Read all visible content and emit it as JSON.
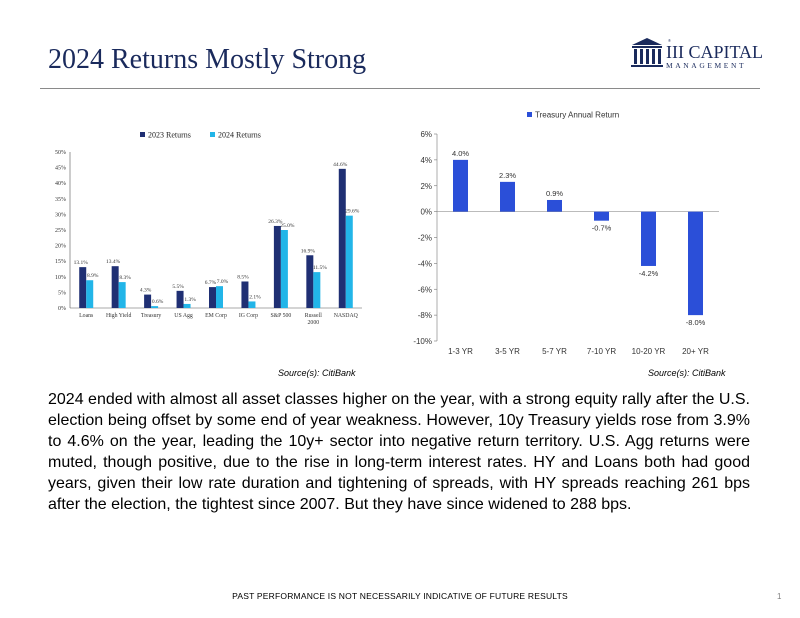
{
  "header": {
    "title": "2024 Returns Mostly Strong",
    "logo": {
      "main": "III CAPITAL",
      "sub": "MANAGEMENT",
      "reg": "®"
    }
  },
  "chart_left": {
    "chart_data": {
      "type": "bar",
      "categories": [
        "Loans",
        "High Yield",
        "Treasury",
        "US Agg",
        "EM Corp",
        "IG Corp",
        "S&P 500",
        "Russell 2000",
        "NASDAQ"
      ],
      "category_lines": [
        [
          "Loans"
        ],
        [
          "High Yield"
        ],
        [
          "Treasury"
        ],
        [
          "US Agg"
        ],
        [
          "EM Corp"
        ],
        [
          "IG Corp"
        ],
        [
          "S&P 500"
        ],
        [
          "Russell",
          "2000"
        ],
        [
          "NASDAQ"
        ]
      ],
      "series": [
        {
          "name": "2023 Returns",
          "values": [
            13.1,
            13.4,
            4.3,
            5.5,
            6.7,
            8.5,
            26.3,
            16.9,
            44.6
          ],
          "labels": [
            "13.1%",
            "13.4%",
            "4.3%",
            "5.5%",
            "6.7%",
            "8.5%",
            "26.3%",
            "16.9%",
            "44.6%"
          ],
          "color": "#1f2f73"
        },
        {
          "name": "2024 Returns",
          "values": [
            8.9,
            8.3,
            0.6,
            1.3,
            7.0,
            2.1,
            25.0,
            11.5,
            29.6
          ],
          "labels": [
            "8.9%",
            "8.3%",
            "0.6%",
            "1.3%",
            "7.0%",
            "2.1%",
            "25.0%",
            "11.5%",
            "29.6%"
          ],
          "color": "#22b5e8"
        }
      ],
      "yticks": [
        "0%",
        "5%",
        "10%",
        "15%",
        "20%",
        "25%",
        "30%",
        "35%",
        "40%",
        "45%",
        "50%"
      ],
      "ylim": [
        0,
        50
      ],
      "legend": "top"
    },
    "source": "Source(s): CitiBank"
  },
  "chart_right": {
    "chart_data": {
      "type": "bar",
      "categories": [
        "1-3 YR",
        "3-5 YR",
        "5-7 YR",
        "7-10 YR",
        "10-20 YR",
        "20+ YR"
      ],
      "series": [
        {
          "name": "Treasury Annual Return",
          "values": [
            4.0,
            2.3,
            0.9,
            -0.7,
            -4.2,
            -8.0
          ],
          "labels": [
            "4.0%",
            "2.3%",
            "0.9%",
            "-0.7%",
            "-4.2%",
            "-8.0%"
          ],
          "color": "#2b4fd8"
        }
      ],
      "yticks": [
        "6%",
        "4%",
        "2%",
        "0%",
        "-2%",
        "-4%",
        "-6%",
        "-8%",
        "-10%"
      ],
      "ylim": [
        -10,
        6
      ],
      "legend": "top"
    },
    "source": "Source(s): CitiBank"
  },
  "body_text": "2024 ended with almost all asset classes higher on the year, with a strong equity rally after the U.S. election being offset by some end of year weakness. However, 10y Treasury yields rose from 3.9% to 4.6% on the year, leading the 10y+ sector into negative return territory. U.S. Agg returns were muted, though positive, due to the rise in long-term interest rates. HY and Loans both had good years, given their low rate duration and tightening of spreads, with HY spreads reaching 261 bps after the election, the tightest since 2007. But they have since widened to 288 bps.",
  "footer": {
    "disclaimer": "PAST PERFORMANCE IS NOT NECESSARILY INDICATIVE OF FUTURE RESULTS",
    "page_number": "1"
  }
}
